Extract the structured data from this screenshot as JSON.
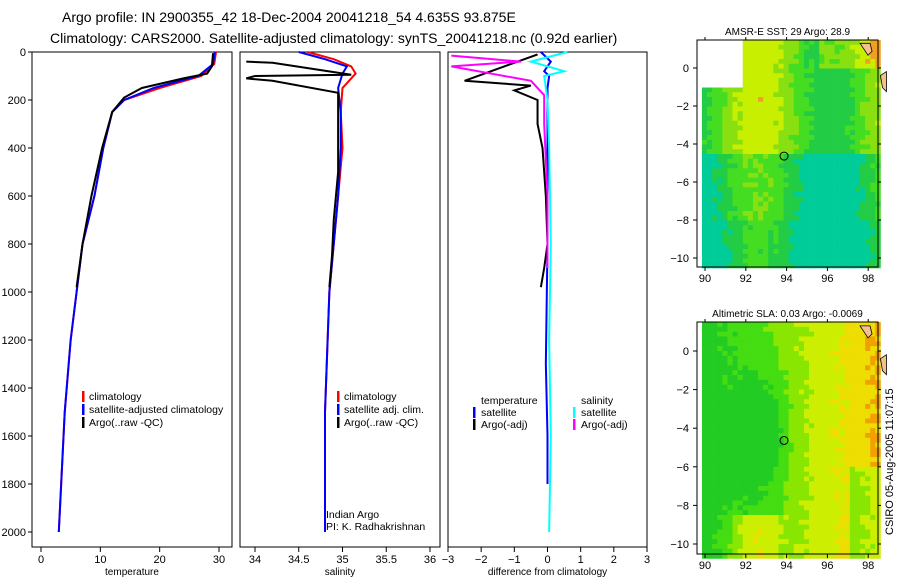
{
  "titles": {
    "line1": "Argo profile: IN 2900355_42 18-Dec-2004 20041218_54 4.635S 93.875E",
    "line2": "Climatology: CARS2000. Satellite-adjusted climatology: synTS_20041218.nc (0.92d earlier)"
  },
  "credit": "CSIRO 05-Aug-2005 11:07:15",
  "chart_data": [
    {
      "type": "line",
      "xlabel": "temperature",
      "ylabel": "",
      "xlim": [
        -1.5,
        32
      ],
      "ylim": [
        2050,
        0
      ],
      "xticks": [
        "0",
        "10",
        "20",
        "30"
      ],
      "yticks": [
        "0",
        "200",
        "400",
        "600",
        "800",
        "1000",
        "1200",
        "1400",
        "1600",
        "1800",
        "2000"
      ],
      "legend": [
        "climatology",
        "satellite-adjusted climatology",
        "Argo(..raw -QC)"
      ],
      "series": [
        {
          "name": "climatology",
          "color": "#ff0000",
          "x": [
            29.5,
            29.2,
            27,
            20,
            14,
            12,
            10.5,
            9,
            7,
            6,
            5,
            4,
            3
          ],
          "y": [
            0,
            50,
            100,
            150,
            200,
            250,
            400,
            600,
            800,
            1000,
            1200,
            1500,
            2000
          ]
        },
        {
          "name": "satellite-adjusted climatology",
          "color": "#0000ff",
          "x": [
            29.3,
            29,
            26.5,
            19,
            14,
            12,
            10.5,
            9,
            7,
            6,
            5,
            4,
            3
          ],
          "y": [
            0,
            50,
            100,
            150,
            200,
            250,
            400,
            600,
            800,
            1000,
            1200,
            1500,
            2000
          ]
        },
        {
          "name": "Argo(..raw -QC)",
          "color": "#000000",
          "x": [
            29.0,
            28.8,
            28,
            24,
            17,
            14,
            12,
            10.3,
            8.5,
            7,
            6
          ],
          "y": [
            5,
            60,
            90,
            110,
            150,
            190,
            250,
            400,
            600,
            800,
            980
          ]
        }
      ]
    },
    {
      "type": "line",
      "xlabel": "salinity",
      "xlim": [
        33.8,
        36.1
      ],
      "ylim": [
        2050,
        0
      ],
      "xticks": [
        "34",
        "34.5",
        "35",
        "35.5",
        "36"
      ],
      "legend": [
        "climatology",
        "satellite adj. clim.",
        "Argo(..raw -QC)"
      ],
      "annotation": [
        "Indian Argo",
        "PI: K. Radhakrishnan"
      ],
      "series": [
        {
          "name": "climatology",
          "color": "#ff0000",
          "x": [
            34.6,
            34.9,
            35.1,
            35.15,
            35.0,
            34.98,
            35.0,
            34.95,
            34.9,
            34.85,
            34.8,
            34.8
          ],
          "y": [
            0,
            30,
            60,
            90,
            150,
            250,
            400,
            600,
            800,
            1000,
            1500,
            2000
          ]
        },
        {
          "name": "satellite adj. clim.",
          "color": "#0000ff",
          "x": [
            34.5,
            34.8,
            35.05,
            35.0,
            34.95,
            34.98,
            34.98,
            34.95,
            34.9,
            34.85,
            34.8,
            34.8
          ],
          "y": [
            0,
            30,
            60,
            90,
            150,
            250,
            400,
            600,
            800,
            1000,
            1500,
            2000
          ]
        },
        {
          "name": "Argo(..raw -QC)",
          "color": "#000000",
          "x": [
            33.9,
            34.2,
            35.1,
            34.0,
            33.9,
            34.2,
            34.95,
            34.95,
            34.95,
            34.9,
            34.88,
            34.85
          ],
          "y": [
            40,
            45,
            95,
            100,
            110,
            120,
            170,
            300,
            500,
            700,
            850,
            980
          ]
        }
      ]
    },
    {
      "type": "line",
      "xlabel": "difference from climatology",
      "xlim": [
        -3,
        3
      ],
      "ylim": [
        2050,
        0
      ],
      "xticks": [
        "-3",
        "-2",
        "-1",
        "0",
        "1",
        "2",
        "3"
      ],
      "legend": {
        "temperature": [
          "satellite",
          "Argo(-adj)"
        ],
        "salinity": [
          "satellite",
          "Argo(-adj)"
        ]
      },
      "series": [
        {
          "name": "temperature satellite",
          "color": "#0000ff",
          "x": [
            -0.2,
            0.1,
            -0.1,
            0.05,
            0,
            0,
            0,
            0,
            -0.05,
            0,
            0
          ],
          "y": [
            0,
            40,
            80,
            100,
            150,
            250,
            400,
            800,
            1300,
            1600,
            1800
          ]
        },
        {
          "name": "temperature Argo(-adj)",
          "color": "#000000",
          "x": [
            -0.3,
            -2.5,
            -0.5,
            -1.0,
            -0.3,
            -0.3,
            -0.15,
            -0.05,
            0,
            -0.1,
            -0.2
          ],
          "y": [
            10,
            120,
            140,
            160,
            200,
            300,
            400,
            600,
            800,
            900,
            980
          ]
        },
        {
          "name": "salinity satellite",
          "color": "#00ffff",
          "x": [
            0.6,
            -0.5,
            0.5,
            -0.1,
            0,
            0.05,
            0.1,
            0.05,
            0.1,
            0.05
          ],
          "y": [
            0,
            40,
            80,
            100,
            200,
            400,
            800,
            1200,
            1600,
            2000
          ]
        },
        {
          "name": "salinity Argo(-adj)",
          "color": "#ff00ff",
          "x": [
            -2.9,
            -0.8,
            -2.9,
            -1.5,
            -0.5,
            -0.1,
            -0.1,
            0,
            0
          ],
          "y": [
            15,
            40,
            60,
            95,
            120,
            180,
            300,
            600,
            900
          ]
        }
      ]
    },
    {
      "type": "heatmap",
      "title": "AMSR-E SST: 29 Argo: 28.9",
      "xticks": [
        "90",
        "92",
        "94",
        "96",
        "98"
      ],
      "yticks": [
        "0",
        "-2",
        "-4",
        "-6",
        "-8",
        "-10"
      ],
      "xlim": [
        89,
        99
      ],
      "ylim": [
        -10.5,
        1.3
      ],
      "argo_position": [
        93.875,
        -4.635
      ]
    },
    {
      "type": "heatmap",
      "title": "Altimetric SLA: 0.03 Argo: -0.0069",
      "xticks": [
        "90",
        "92",
        "94",
        "96",
        "98"
      ],
      "yticks": [
        "0",
        "-2",
        "-4",
        "-6",
        "-8",
        "-10"
      ],
      "xlim": [
        89,
        99
      ],
      "ylim": [
        -10.5,
        1.3
      ],
      "argo_position": [
        93.875,
        -4.635
      ]
    }
  ]
}
